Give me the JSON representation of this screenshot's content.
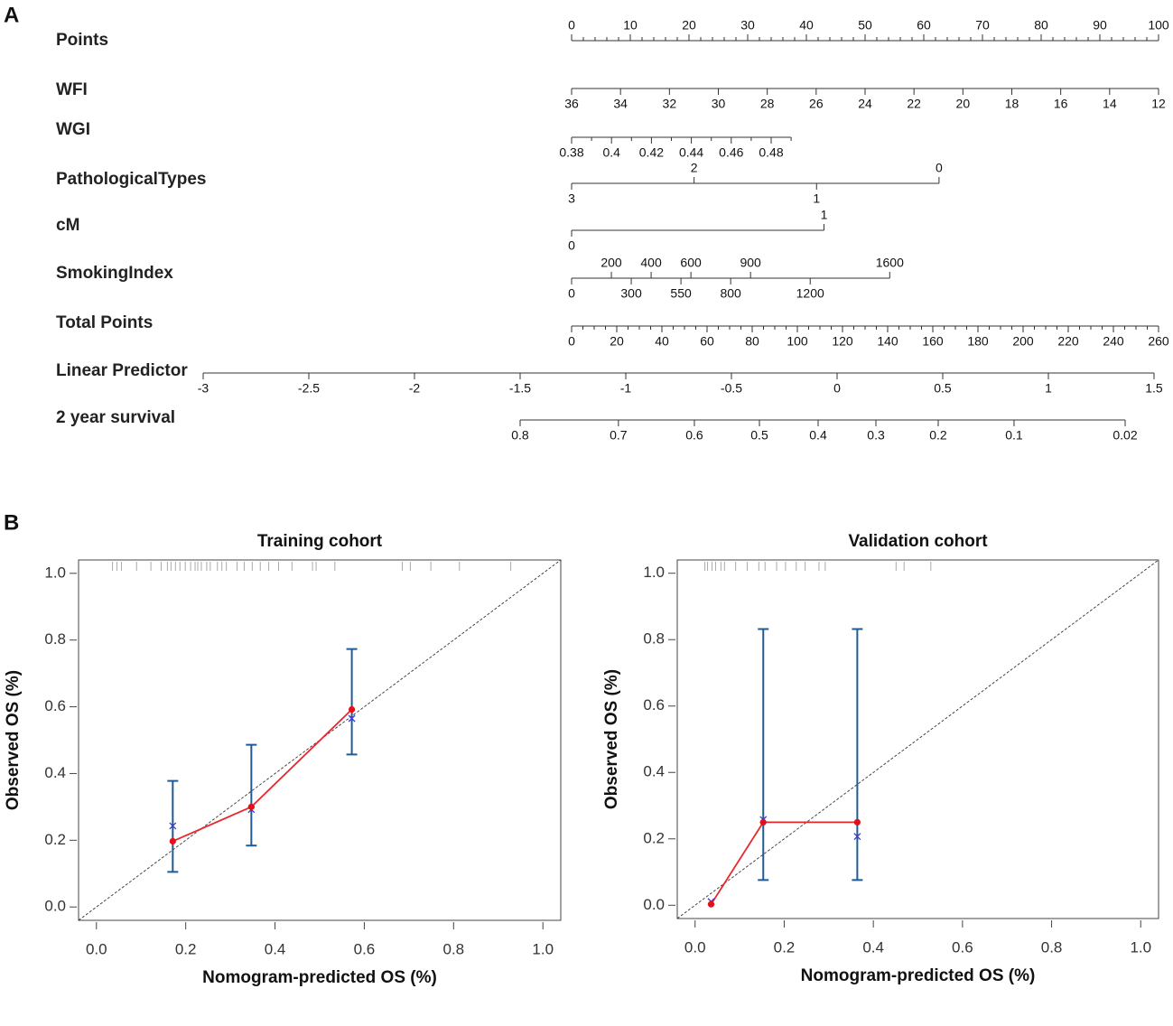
{
  "chart_data": [
    {
      "type": "nomogram",
      "panel": "A",
      "rows": [
        {
          "name": "Points",
          "labels": "above",
          "range": [
            0,
            100
          ],
          "points_range": [
            0,
            100
          ],
          "ticks": [
            0,
            10,
            20,
            30,
            40,
            50,
            60,
            70,
            80,
            90,
            100
          ],
          "minor_ticks": [
            0,
            2,
            4,
            6,
            8,
            10,
            12,
            14,
            16,
            18,
            20,
            22,
            24,
            26,
            28,
            30,
            32,
            34,
            36,
            38,
            40,
            42,
            44,
            46,
            48,
            50,
            52,
            54,
            56,
            58,
            60,
            62,
            64,
            66,
            68,
            70,
            72,
            74,
            76,
            78,
            80,
            82,
            84,
            86,
            88,
            90,
            92,
            94,
            96,
            98,
            100
          ]
        },
        {
          "name": "WFI",
          "labels": "below",
          "range": [
            36,
            12
          ],
          "points_range": [
            0,
            100
          ],
          "ticks": [
            36,
            34,
            32,
            30,
            28,
            26,
            24,
            22,
            20,
            18,
            16,
            14,
            12
          ]
        },
        {
          "name": "WGI",
          "labels": "below",
          "range": [
            0.38,
            0.49
          ],
          "points_range": [
            0,
            37.4
          ],
          "ticks": [
            0.38,
            0.4,
            0.42,
            0.44,
            0.46,
            0.48
          ],
          "minor_ticks": [
            0.39,
            0.41,
            0.43,
            0.45,
            0.47,
            0.49
          ]
        },
        {
          "name": "PathologicalTypes",
          "labels": "alternate",
          "range": [
            3,
            0
          ],
          "points_range": [
            0,
            62.6
          ],
          "ticks": [
            3,
            2,
            1,
            0
          ]
        },
        {
          "name": "cM",
          "labels": "alternate",
          "range": [
            0,
            1
          ],
          "points_range": [
            0,
            43.0
          ],
          "ticks": [
            0,
            1
          ]
        },
        {
          "name": "SmokingIndex",
          "labels": "alternate",
          "range": [
            0,
            1600
          ],
          "points_range": [
            0,
            54.2
          ],
          "ticks": [
            0,
            200,
            300,
            400,
            550,
            600,
            800,
            900,
            1200,
            1600
          ]
        },
        {
          "name": "Total Points",
          "labels": "below",
          "range": [
            0,
            260
          ],
          "points_range": [
            0,
            100
          ],
          "ticks": [
            0,
            20,
            40,
            60,
            80,
            100,
            120,
            140,
            160,
            180,
            200,
            220,
            240,
            260
          ],
          "minor_ticks": [
            0,
            5,
            10,
            15,
            20,
            25,
            30,
            35,
            40,
            45,
            50,
            55,
            60,
            65,
            70,
            75,
            80,
            85,
            90,
            95,
            100,
            105,
            110,
            115,
            120,
            125,
            130,
            135,
            140,
            145,
            150,
            155,
            160,
            165,
            170,
            175,
            180,
            185,
            190,
            195,
            200,
            205,
            210,
            215,
            220,
            225,
            230,
            235,
            240,
            245,
            250,
            255,
            260
          ]
        },
        {
          "name": "Linear Predictor",
          "labels": "below",
          "range": [
            -3,
            1.5
          ],
          "points_range": [
            -62.77,
            99.23
          ],
          "ticks": [
            -3,
            -2.5,
            -2,
            -1.5,
            -1,
            -0.5,
            0,
            0.5,
            1,
            1.5
          ]
        },
        {
          "name": "2 year survival",
          "labels": "below",
          "ticks": [
            0.8,
            0.7,
            0.6,
            0.5,
            0.4,
            0.3,
            0.2,
            0.1,
            0.02
          ],
          "positions": [
            -8.77,
            7.98,
            20.92,
            32.0,
            42.0,
            51.85,
            62.46,
            75.38,
            94.31
          ]
        }
      ]
    },
    {
      "type": "calibration",
      "panel": "B",
      "title": "Training cohort",
      "xlabel": "Nomogram-predicted OS (%)",
      "ylabel": "Observed OS (%)",
      "xlim": [
        -0.04,
        1.04
      ],
      "ylim": [
        -0.04,
        1.04
      ],
      "xticks": [
        {
          "value": 0,
          "label": "0.0"
        },
        0.2,
        0.4,
        0.6,
        0.8,
        {
          "value": 1,
          "label": "1.0"
        }
      ],
      "yticks": [
        {
          "value": 0,
          "label": "0.0"
        },
        0.2,
        0.4,
        0.6,
        0.8,
        {
          "value": 1,
          "label": "1.0"
        }
      ],
      "predicted": [
        0.171,
        0.347,
        0.572
      ],
      "observed": [
        0.197,
        0.3,
        0.592
      ],
      "lower": [
        0.105,
        0.184,
        0.457
      ],
      "upper": [
        0.378,
        0.486,
        0.773
      ],
      "corrected": [
        0.243,
        0.292,
        0.565
      ],
      "rug": [
        0.036,
        0.046,
        0.056,
        0.09,
        0.122,
        0.145,
        0.159,
        0.167,
        0.177,
        0.187,
        0.199,
        0.211,
        0.221,
        0.227,
        0.235,
        0.247,
        0.255,
        0.271,
        0.281,
        0.291,
        0.315,
        0.331,
        0.349,
        0.367,
        0.386,
        0.408,
        0.438,
        0.484,
        0.492,
        0.534,
        0.685,
        0.703,
        0.749,
        0.813,
        0.928
      ],
      "line_color": "#e8262b",
      "point_color": "#e3101a",
      "bar_color": "#1f5b94",
      "corrected_color": "#3a3acc",
      "rug_color": "#aaaaaa"
    },
    {
      "type": "calibration",
      "title": "Validation cohort",
      "xlabel": "Nomogram-predicted OS (%)",
      "ylabel": "Observed OS (%)",
      "xlim": [
        -0.04,
        1.04
      ],
      "ylim": [
        -0.04,
        1.04
      ],
      "xticks": [
        {
          "value": 0,
          "label": "0.0"
        },
        0.2,
        0.4,
        0.6,
        0.8,
        {
          "value": 1,
          "label": "1.0"
        }
      ],
      "yticks": [
        {
          "value": 0,
          "label": "0.0"
        },
        0.2,
        0.4,
        0.6,
        0.8,
        {
          "value": 1,
          "label": "1.0"
        }
      ],
      "predicted": [
        0.036,
        0.153,
        0.364
      ],
      "observed": [
        0.003,
        0.25,
        0.25
      ],
      "lower": [
        null,
        0.076,
        0.076
      ],
      "upper": [
        null,
        0.832,
        0.832
      ],
      "corrected": [
        0.011,
        0.258,
        0.207
      ],
      "rug": [
        0.022,
        0.028,
        0.038,
        0.046,
        0.058,
        0.066,
        0.091,
        0.117,
        0.143,
        0.157,
        0.183,
        0.203,
        0.227,
        0.247,
        0.278,
        0.292,
        0.451,
        0.469,
        0.529
      ],
      "line_color": "#e8262b",
      "point_color": "#e3101a",
      "bar_color": "#1f5b94",
      "corrected_color": "#3a3acc",
      "rug_color": "#aaaaaa"
    }
  ]
}
